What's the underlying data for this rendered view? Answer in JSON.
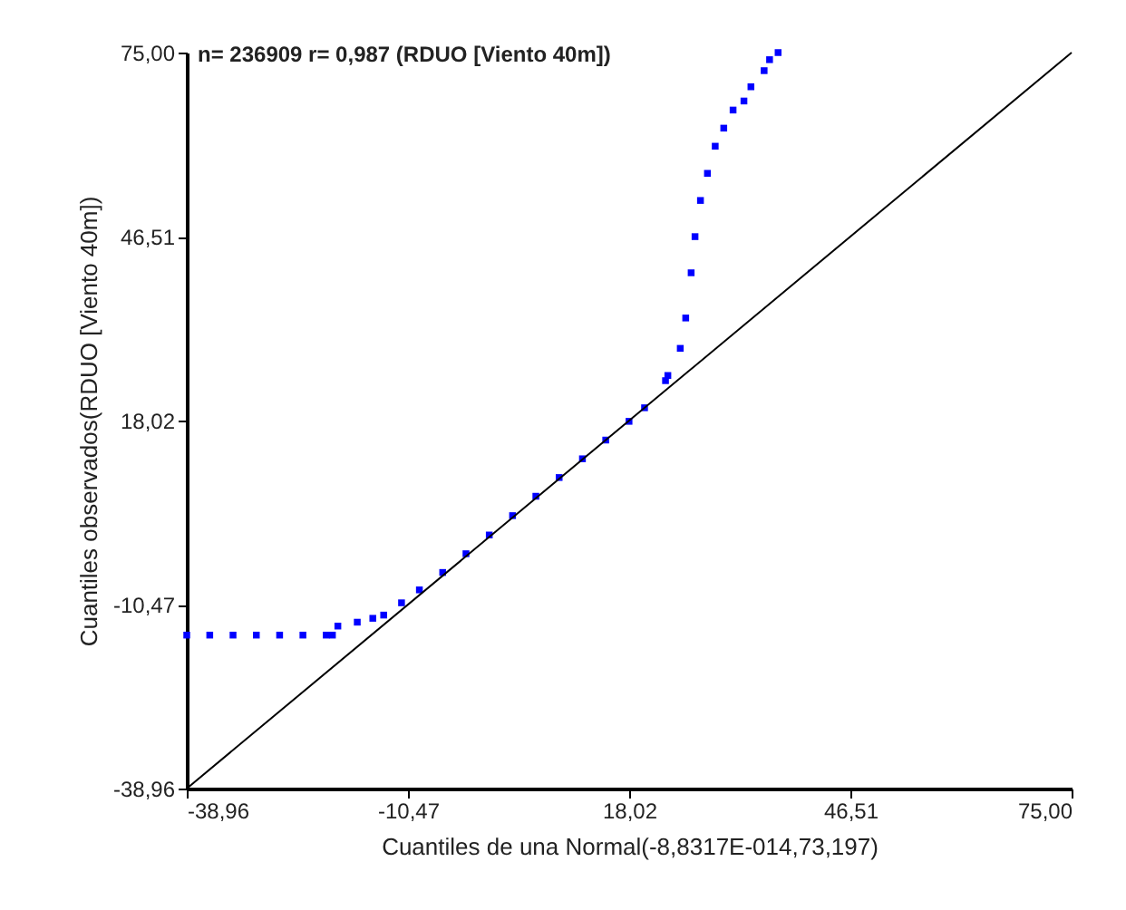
{
  "chart_data": {
    "type": "scatter",
    "title": "n= 236909 r= 0,987 (RDUO [Viento 40m])",
    "xlabel": "Cuantiles de una Normal(-8,8317E-014,73,197)",
    "ylabel": "Cuantiles observados(RDUO [Viento 40m])",
    "xlim": [
      -38.96,
      75.0
    ],
    "ylim": [
      -38.96,
      75.0
    ],
    "xticks": [
      {
        "value": -38.96,
        "label": "-38,96"
      },
      {
        "value": -10.47,
        "label": "-10,47"
      },
      {
        "value": 18.02,
        "label": "18,02"
      },
      {
        "value": 46.51,
        "label": "46,51"
      },
      {
        "value": 75.0,
        "label": "75,00"
      }
    ],
    "yticks": [
      {
        "value": -38.96,
        "label": "-38,96"
      },
      {
        "value": -10.47,
        "label": "-10,47"
      },
      {
        "value": 18.02,
        "label": "18,02"
      },
      {
        "value": 46.51,
        "label": "46,51"
      },
      {
        "value": 75.0,
        "label": "75,00"
      }
    ],
    "marker": "square",
    "grid": false,
    "series": [
      {
        "color": "#0000ff",
        "x": [
          -38.96,
          -36,
          -33,
          -30,
          -27,
          -24,
          -21,
          -20.2,
          -19.5,
          -17,
          -15,
          -13.6,
          -11.3,
          -9,
          -6,
          -3,
          0,
          3,
          6,
          9,
          12,
          15,
          18,
          20,
          22.7,
          23.0,
          24.6,
          25.3,
          26.0,
          26.5,
          27.2,
          28.1,
          29.1,
          30.2,
          31.4,
          32.8,
          33.7,
          35.4,
          36.1,
          37.2
        ],
        "values": [
          -15.2,
          -15.2,
          -15.2,
          -15.2,
          -15.2,
          -15.2,
          -15.2,
          -15.2,
          -13.8,
          -13.2,
          -12.6,
          -12.1,
          -10.2,
          -8.2,
          -5.5,
          -2.6,
          0.3,
          3.3,
          6.3,
          9.2,
          12.1,
          15.0,
          17.9,
          20.0,
          24.2,
          25.0,
          29.2,
          33.9,
          40.9,
          46.5,
          52.1,
          56.3,
          60.5,
          63.3,
          66.1,
          67.5,
          69.7,
          72.2,
          73.9,
          75.0
        ]
      },
      {
        "type": "line",
        "marker": "none",
        "color": "#000000",
        "x": [
          -38.96,
          75.0
        ],
        "values": [
          -38.96,
          75.0
        ]
      }
    ]
  }
}
